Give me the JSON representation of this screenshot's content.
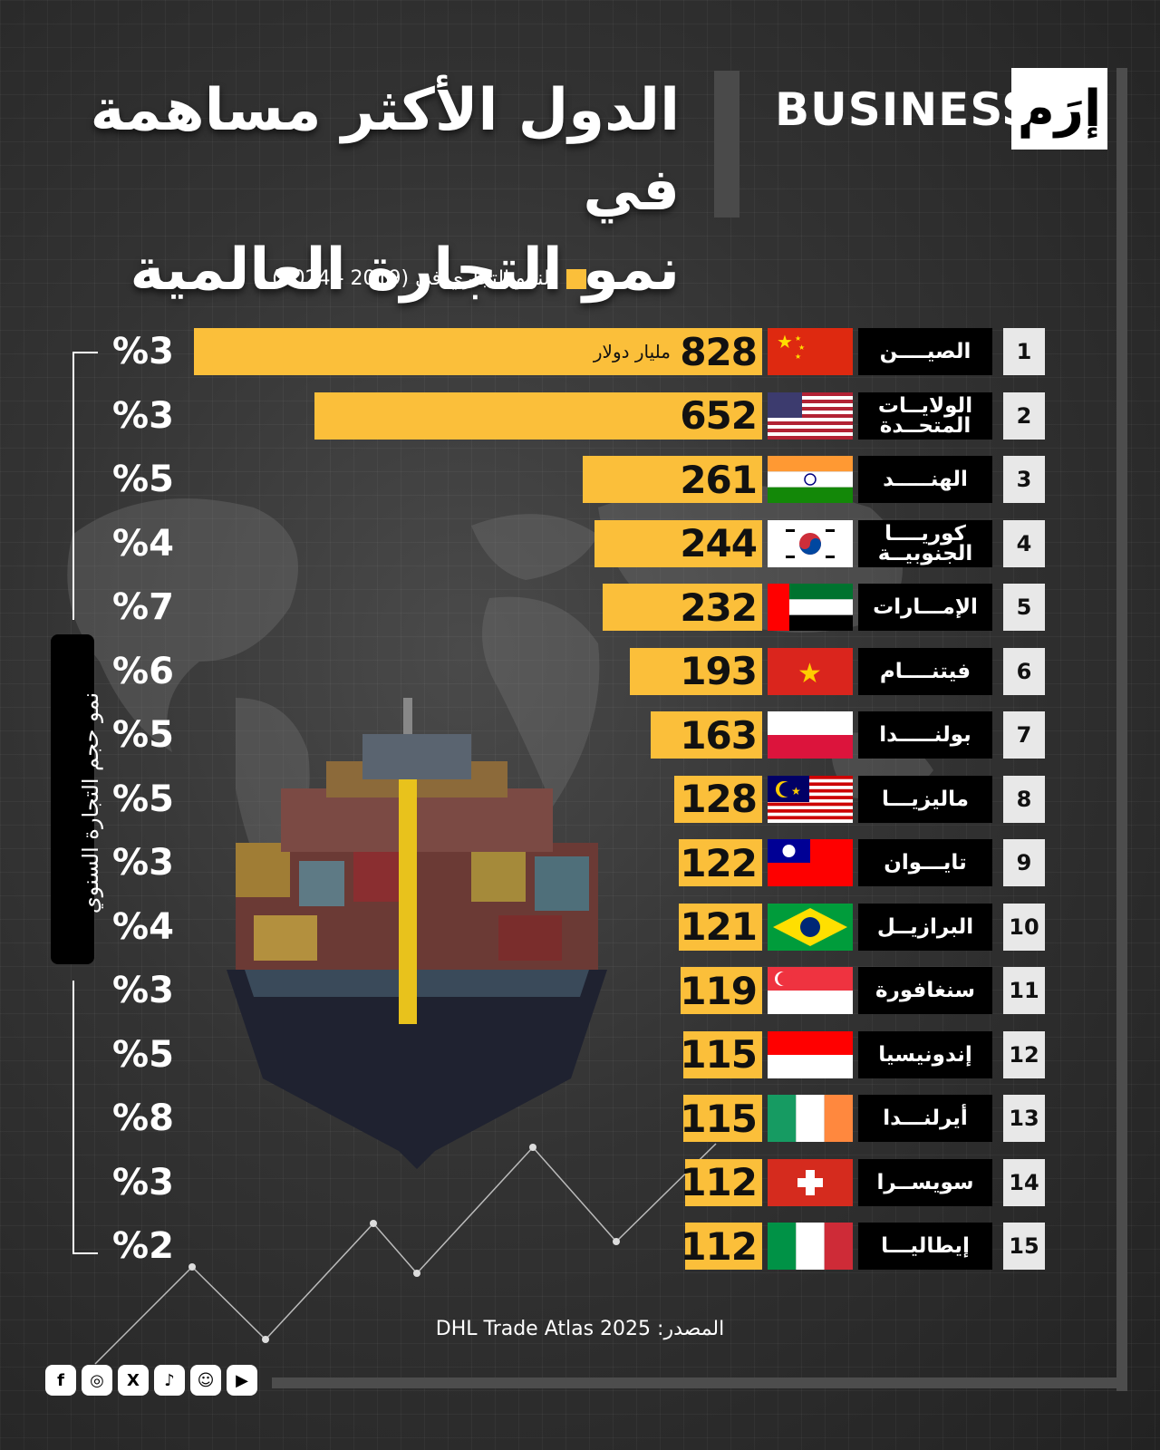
{
  "brand": {
    "name": "BUSINESS",
    "logo_mark": "إرَم"
  },
  "chart_data": {
    "type": "bar",
    "orientation": "horizontal",
    "title_line1": "الدول الأكثر مساهمة في",
    "title_line2": "نمو التجارة العالمية",
    "unit_label": "مليار دولار",
    "secondary_label": "نمو حجم التجارة السنوي",
    "source": "المصدر: DHL Trade Atlas 2025",
    "ranks": [
      "1",
      "2",
      "3",
      "4",
      "5",
      "6",
      "7",
      "8",
      "9",
      "10",
      "11",
      "12",
      "13",
      "14",
      "15"
    ],
    "categories": [
      "الصيــــن",
      "الولايــات المتحــدة",
      "الهنـــــد",
      "كوريــــا الجنوبيــة",
      "الإمـــارات",
      "فيتنــــام",
      "بولنـــــدا",
      "ماليزيـــا",
      "تايـــوان",
      "البرازيــل",
      "سنغافورة",
      "إندونيسيا",
      "أيرلنـــدا",
      "سويســرا",
      "إيطاليـــا"
    ],
    "series": [
      {
        "name": "النمو التجاري في (2019 - 2024)",
        "values": [
          828,
          652,
          261,
          244,
          232,
          193,
          163,
          128,
          122,
          121,
          119,
          115,
          115,
          112,
          112
        ]
      }
    ],
    "value_labels": [
      "828",
      "652",
      "261",
      "244",
      "232",
      "193",
      "163",
      "128",
      "122",
      "121",
      "119",
      "115",
      "115",
      "112",
      "112"
    ],
    "growth_labels": [
      "%3",
      "%3",
      "%5",
      "%4",
      "%7",
      "%6",
      "%5",
      "%5",
      "%3",
      "%4",
      "%3",
      "%5",
      "%8",
      "%3",
      "%2"
    ],
    "growth_pct": [
      3,
      3,
      5,
      4,
      7,
      6,
      5,
      5,
      3,
      4,
      3,
      5,
      8,
      3,
      2
    ],
    "flags": [
      "china-flag",
      "usa-flag",
      "india-flag",
      "south-korea-flag",
      "uae-flag",
      "vietnam-flag",
      "poland-flag",
      "malaysia-flag",
      "taiwan-flag",
      "brazil-flag",
      "singapore-flag",
      "indonesia-flag",
      "ireland-flag",
      "switzerland-flag",
      "italy-flag"
    ],
    "colors": {
      "bar": "#fbbf3a"
    }
  }
}
